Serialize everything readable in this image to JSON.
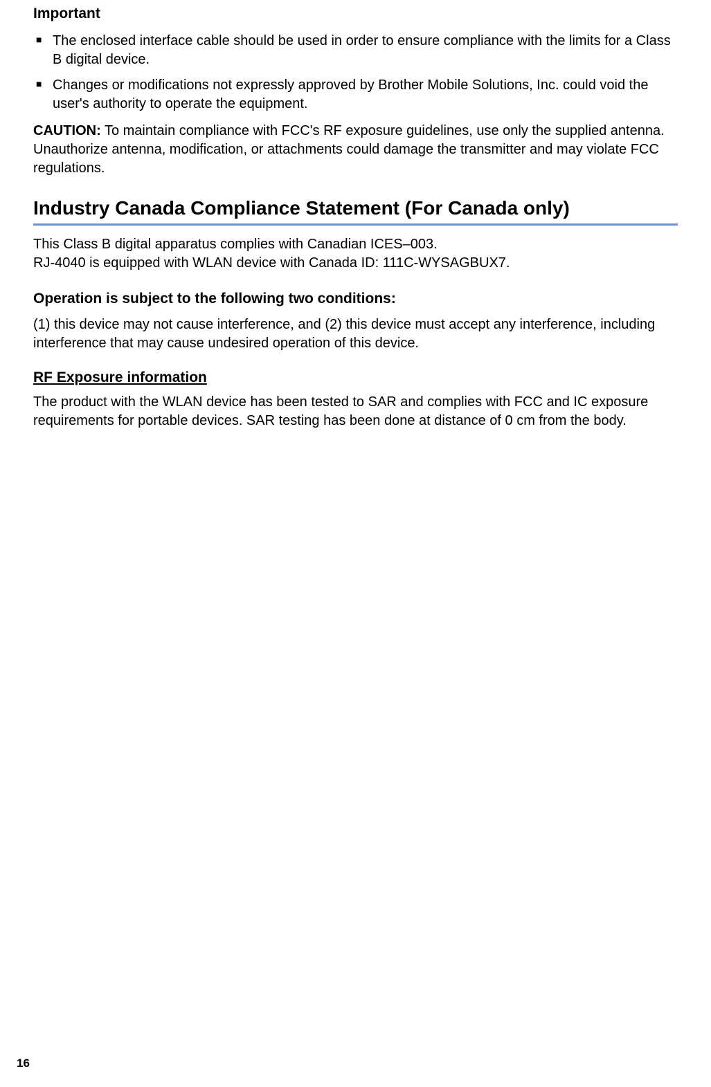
{
  "important": {
    "heading": "Important",
    "bullets": [
      "The enclosed interface cable should be used in order to ensure compliance with the limits for a Class B digital device.",
      "Changes or modifications not expressly approved by Brother Mobile Solutions, Inc. could void the user's authority to operate the equipment."
    ]
  },
  "caution": {
    "label": "CAUTION:",
    "text": " To maintain compliance with FCC's RF exposure guidelines, use only the supplied antenna. Unauthorize antenna, modification, or attachments could damage the transmitter and may violate FCC regulations."
  },
  "canada": {
    "heading": "Industry Canada Compliance Statement (For Canada only)",
    "para1_line1": "This Class B digital apparatus complies with Canadian ICES–003.",
    "para1_line2": "RJ-4040 is equipped with WLAN device with Canada ID: 111C-WYSAGBUX7.",
    "conditions_heading": "Operation is subject to the following two conditions:",
    "conditions_text": "(1) this device may not cause interference, and (2) this device must accept any interference, including interference that may cause undesired operation of this device.",
    "rf_heading": "RF Exposure information",
    "rf_text": "The product with the WLAN device has been tested to SAR and complies with FCC and IC exposure requirements for portable devices. SAR testing has been done at distance of 0 cm from the body."
  },
  "page_number": "16",
  "colors": {
    "rule": "#6f8fd0",
    "text": "#000000",
    "background": "#ffffff"
  }
}
